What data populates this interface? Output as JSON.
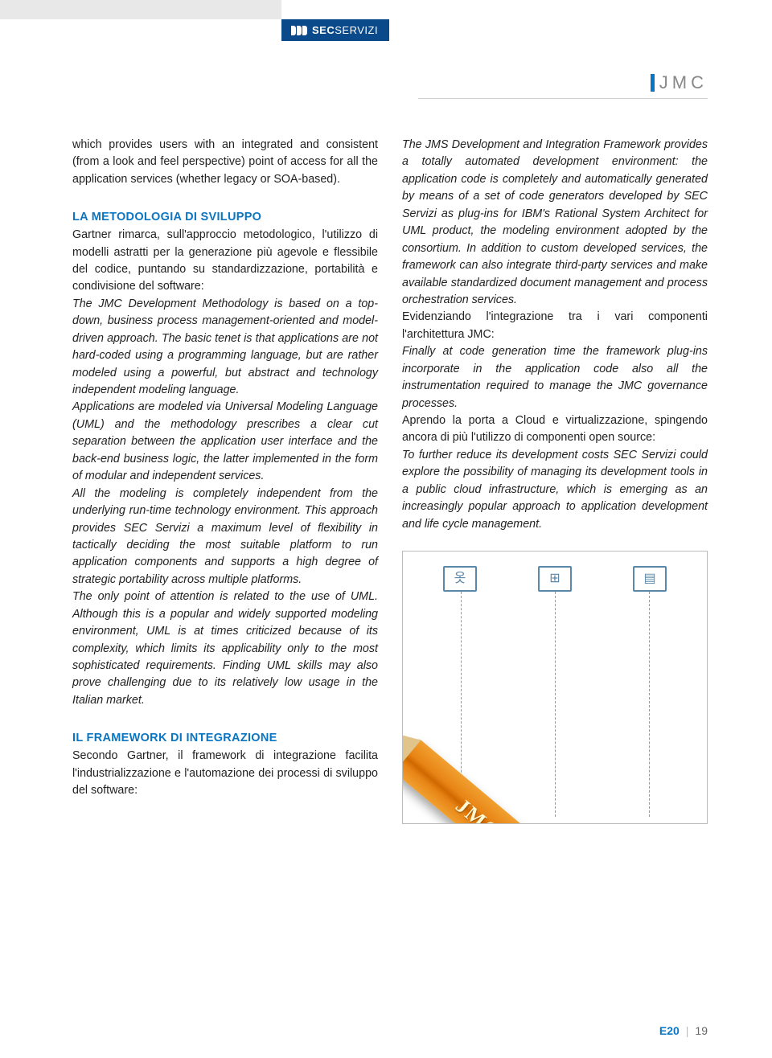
{
  "brand": {
    "name_bold": "SEC",
    "name_light": "SERVIZI"
  },
  "section_label": "JMC",
  "left_col": {
    "intro": "which provides users with an integrated and consistent (from a look and feel perspective) point of access for all the application services (whether legacy or SOA-based).",
    "h1": "LA METODOLOGIA DI SVILUPPO",
    "p1": "Gartner rimarca, sull'approccio metodologico, l'utilizzo di modelli astratti per la generazione più agevole e flessibile del codice, puntando su standardizzazione, portabilità e condivisione del software:",
    "p2": "The JMC Development Methodology is based on a top-down, business process management-oriented and model-driven approach. The basic tenet is that applications are not hard-coded using a programming language, but are rather modeled using a powerful, but abstract and technology independent modeling language.",
    "p3": "Applications are modeled via Universal Modeling Language (UML) and the methodology prescribes a clear cut separation between the application user interface and the back-end business logic, the latter implemented in the form of modular and independent services.",
    "p4": "All the modeling is completely independent from the underlying run-time technology environment. This approach provides SEC Servizi a maximum level of flexibility in tactically deciding the most suitable platform to run application components and supports a high degree of strategic portability across multiple platforms.",
    "p5": "The only point of attention is related to the use of UML. Although this is a popular and widely supported modeling environment, UML is at times criticized because of its complexity, which limits its applicability only to the most sophisticated requirements. Finding UML skills may also prove challenging due to its relatively low usage in the Italian market.",
    "h2": "IL FRAMEWORK DI INTEGRAZIONE",
    "p6": "Secondo Gartner, il framework di integrazione facilita l'industrializzazione e l'automazione dei processi di sviluppo del software:"
  },
  "right_col": {
    "p1": "The JMS Development and Integration Framework provides a totally automated development environment: the application code is completely and automatically generated by means of a set of code generators developed by SEC Servizi as plug-ins for IBM's Rational System Architect for UML product, the modeling environment adopted by the consortium. In addition to custom developed services, the framework can also integrate third-party services and make available standardized document management and process orchestration services.",
    "p2a": "Evidenziando l'integrazione tra i vari componenti l'architettura JMC:",
    "p2b": "Finally at code generation time the framework plug-ins incorporate in the application code also all the instrumentation required to manage the JMC governance processes.",
    "p3a": "Aprendo la porta a Cloud e virtualizzazione, spingendo ancora di più l'utilizzo di componenti open source:",
    "p3b": "To further reduce its development costs SEC Servizi could explore the possibility of managing its development tools in a public cloud infrastructure, which is emerging as an increasingly popular approach to application development and life cycle management."
  },
  "figure": {
    "pencil_label": "JMC",
    "icons": {
      "actor": "옷",
      "interface": "⊞",
      "class": "▤"
    }
  },
  "footer": {
    "issue": "E20",
    "page": "19"
  },
  "colors": {
    "brand_blue": "#0a4a8a",
    "accent_blue": "#0a75c2",
    "text": "#222222",
    "pencil_orange": "#e88516",
    "gray_bar": "#e8e8e8"
  }
}
